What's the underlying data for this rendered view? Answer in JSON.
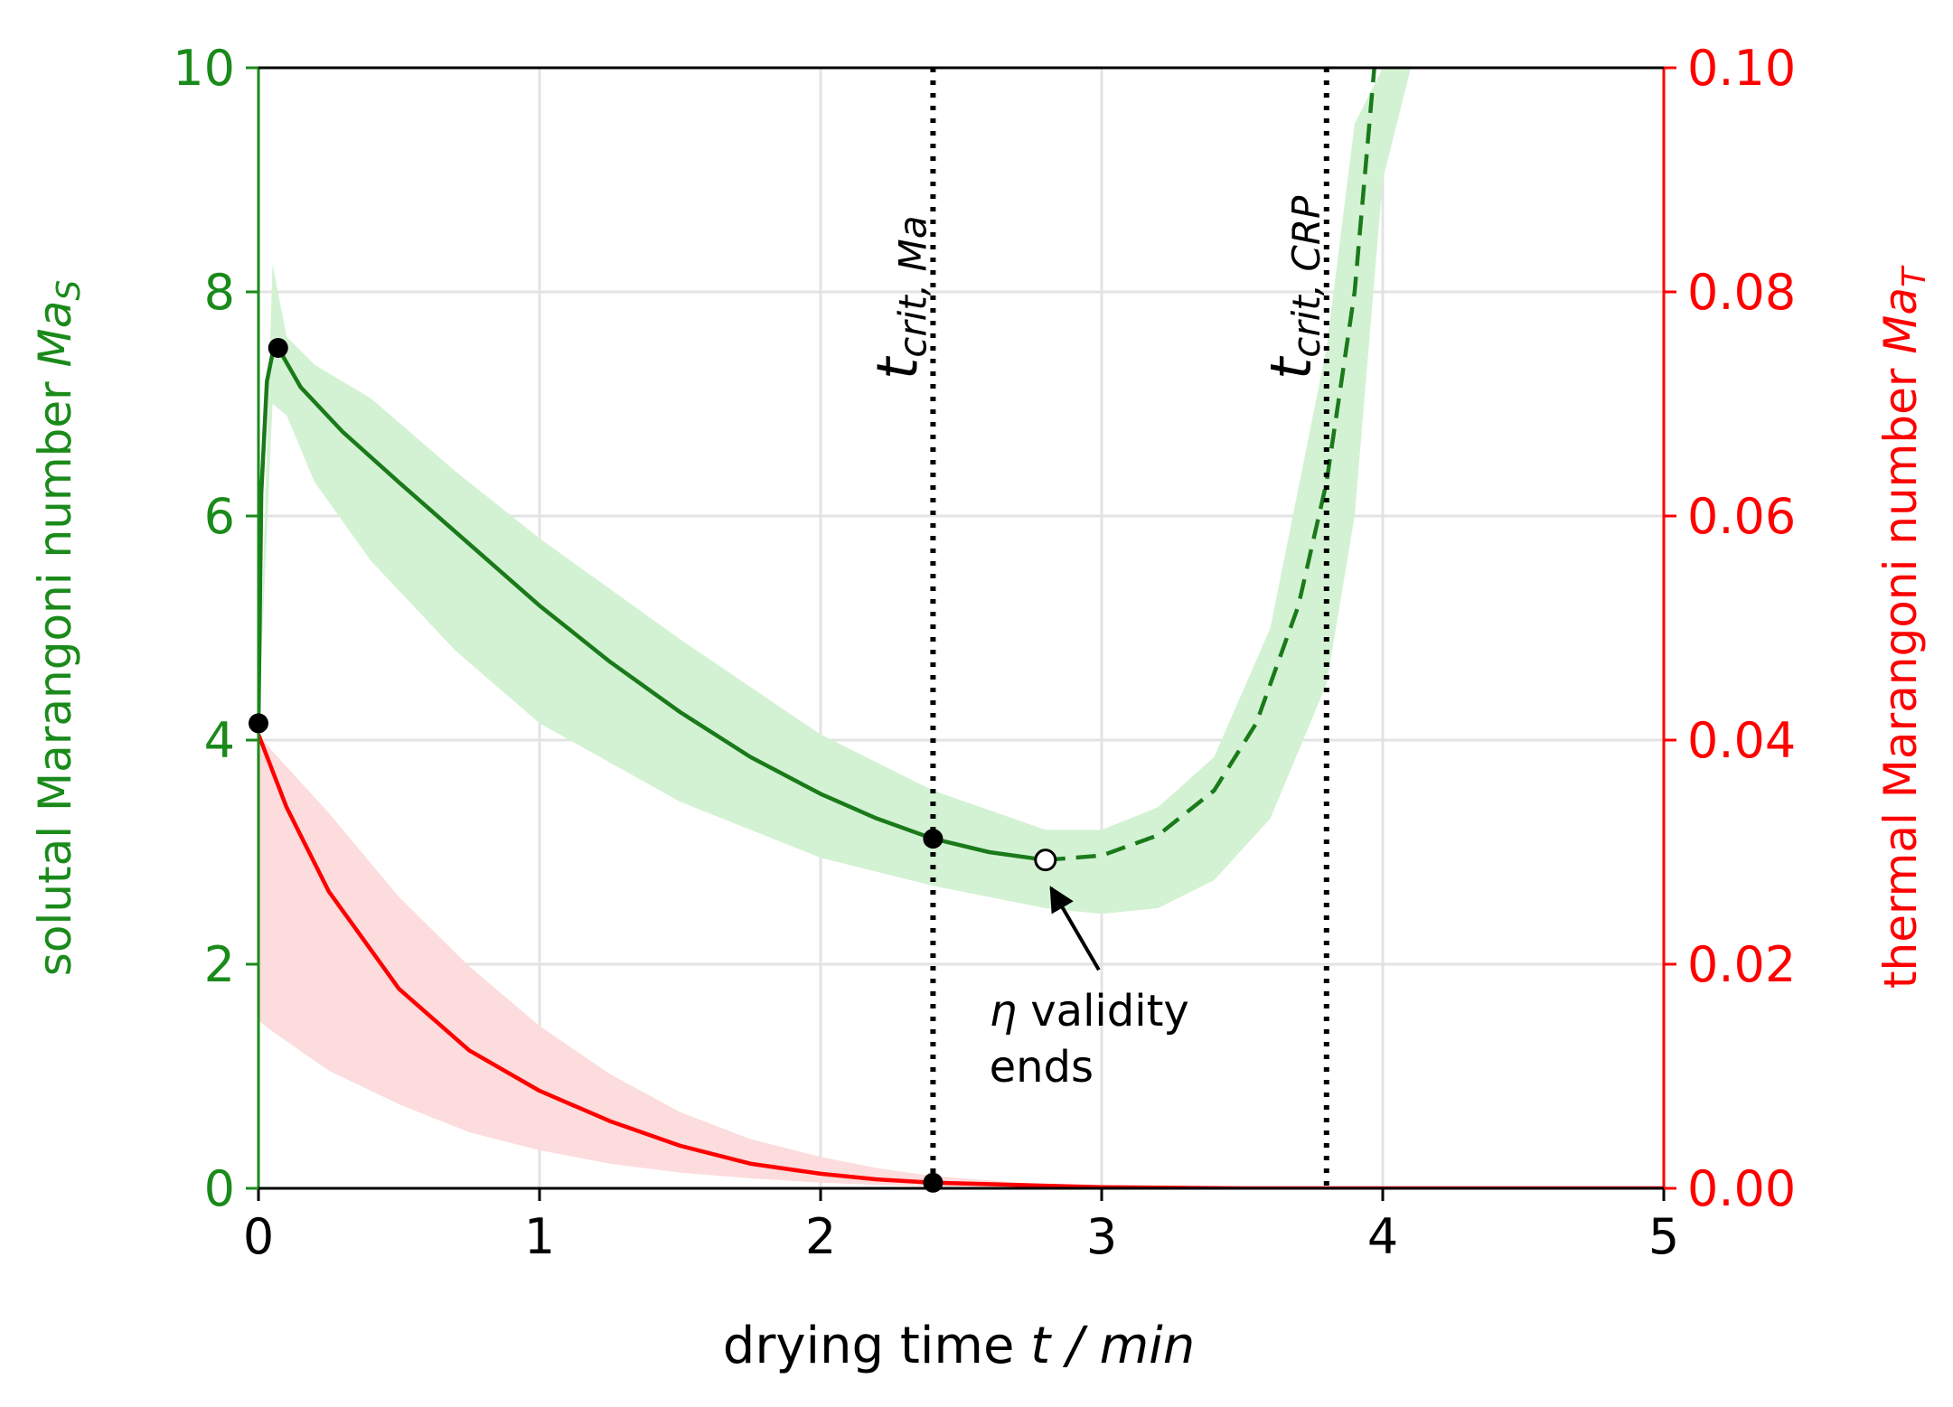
{
  "chart_data": {
    "type": "line",
    "x_axis": {
      "label_text": "drying time",
      "label_var": "t / min",
      "range": [
        0,
        5
      ],
      "ticks": [
        "0",
        "1",
        "2",
        "3",
        "4",
        "5"
      ]
    },
    "y_axis_left": {
      "label_text": "solutal Marangoni number ",
      "label_var": "Ma",
      "label_sub": "S",
      "range": [
        0,
        10
      ],
      "ticks": [
        "0",
        "2",
        "4",
        "6",
        "8",
        "10"
      ],
      "color": "#1a8a1a"
    },
    "y_axis_right": {
      "label_text": "thermal Marangoni number ",
      "label_var": "Ma",
      "label_sub": "T",
      "range": [
        0,
        0.1
      ],
      "ticks": [
        "0.00",
        "0.02",
        "0.04",
        "0.06",
        "0.08",
        "0.10"
      ],
      "color": "#ff0000"
    },
    "grid": true,
    "series": [
      {
        "axis": "left",
        "color": "#1a7a1a",
        "solid_x": [
          0,
          0.01,
          0.03,
          0.05,
          0.07,
          0.15,
          0.3,
          0.5,
          0.75,
          1.0,
          1.25,
          1.5,
          1.75,
          2.0,
          2.2,
          2.4,
          2.6,
          2.8
        ],
        "solid_y": [
          4.15,
          6.2,
          7.2,
          7.45,
          7.5,
          7.15,
          6.75,
          6.3,
          5.75,
          5.2,
          4.7,
          4.25,
          3.85,
          3.52,
          3.3,
          3.12,
          3.0,
          2.93
        ],
        "dashed_x": [
          2.8,
          3.0,
          3.2,
          3.4,
          3.55,
          3.7,
          3.8,
          3.9,
          3.97
        ],
        "dashed_y": [
          2.93,
          2.97,
          3.15,
          3.55,
          4.15,
          5.2,
          6.3,
          8.0,
          10.0
        ],
        "band_x": [
          0,
          0.05,
          0.1,
          0.2,
          0.4,
          0.7,
          1.0,
          1.5,
          2.0,
          2.4,
          2.8,
          3.0,
          3.2,
          3.4,
          3.6,
          3.8,
          3.9,
          4.0,
          4.1
        ],
        "band_lower": [
          4.15,
          7.0,
          6.9,
          6.3,
          5.6,
          4.8,
          4.15,
          3.45,
          2.95,
          2.7,
          2.5,
          2.45,
          2.5,
          2.75,
          3.3,
          4.5,
          6.0,
          9.0,
          10.0
        ],
        "band_upper": [
          4.15,
          8.25,
          7.6,
          7.35,
          7.05,
          6.4,
          5.8,
          4.9,
          4.05,
          3.55,
          3.2,
          3.2,
          3.4,
          3.85,
          5.0,
          7.5,
          9.5,
          10.0,
          10.0
        ]
      },
      {
        "axis": "right",
        "color": "#ff0000",
        "solid_x": [
          0,
          0.1,
          0.25,
          0.5,
          0.75,
          1.0,
          1.25,
          1.5,
          1.75,
          2.0,
          2.2,
          2.4,
          2.7,
          3.0,
          3.5,
          4.0,
          5.0
        ],
        "solid_y": [
          0.0405,
          0.034,
          0.0265,
          0.0178,
          0.0123,
          0.0087,
          0.006,
          0.0038,
          0.0022,
          0.0013,
          0.0008,
          0.0005,
          0.0003,
          0.0001,
          0.0,
          0.0,
          0.0
        ],
        "band_x": [
          0,
          0.05,
          0.25,
          0.5,
          0.75,
          1.0,
          1.25,
          1.5,
          1.75,
          2.0,
          2.2,
          2.4,
          2.7,
          3.0,
          3.5,
          4.0
        ],
        "band_lower": [
          0.015,
          0.014,
          0.0105,
          0.0075,
          0.005,
          0.0034,
          0.0022,
          0.0014,
          0.0009,
          0.0005,
          0.0003,
          0.0002,
          0.0001,
          0.0,
          0.0,
          0.0
        ],
        "band_upper": [
          0.0405,
          0.039,
          0.0335,
          0.026,
          0.0198,
          0.0145,
          0.0102,
          0.0068,
          0.0044,
          0.0028,
          0.0018,
          0.0011,
          0.0005,
          0.0002,
          0.0,
          0.0
        ]
      }
    ],
    "markers": [
      {
        "axis": "left",
        "x": 0.0,
        "y": 4.15,
        "style": "filled"
      },
      {
        "axis": "left",
        "x": 0.07,
        "y": 7.5,
        "style": "filled"
      },
      {
        "axis": "left",
        "x": 2.4,
        "y": 3.12,
        "style": "filled"
      },
      {
        "axis": "left",
        "x": 2.8,
        "y": 2.93,
        "style": "open"
      },
      {
        "axis": "left",
        "x": 2.4,
        "y": 0.05,
        "style": "filled"
      }
    ],
    "vlines": [
      {
        "x": 2.4,
        "label_var": "t",
        "label_sub": "crit, Ma"
      },
      {
        "x": 3.8,
        "label_var": "t",
        "label_sub": "crit, CRP"
      }
    ],
    "annotation": {
      "symbol": "η",
      "line1": " validity",
      "line2": "ends",
      "text_x": 2.6,
      "text_y": 1.45,
      "arrow_from_x": 2.99,
      "arrow_from_y": 1.95,
      "arrow_to_x": 2.82,
      "arrow_to_y": 2.68
    }
  }
}
